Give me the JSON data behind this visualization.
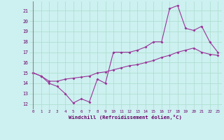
{
  "xlabel": "Windchill (Refroidissement éolien,°C)",
  "bg_color": "#cdf0f0",
  "grid_color": "#aaddcc",
  "line_color": "#993399",
  "hours": [
    0,
    1,
    2,
    3,
    4,
    5,
    6,
    7,
    8,
    9,
    10,
    11,
    12,
    13,
    14,
    15,
    16,
    17,
    18,
    19,
    20,
    21,
    22,
    23
  ],
  "line1": [
    15.0,
    14.7,
    14.0,
    13.7,
    13.0,
    12.1,
    12.5,
    12.2,
    14.4,
    14.0,
    17.0,
    17.0,
    17.0,
    17.2,
    17.5,
    18.0,
    18.0,
    21.2,
    21.5,
    19.3,
    19.1,
    19.5,
    18.0,
    17.0
  ],
  "line2": [
    15.0,
    14.7,
    14.2,
    14.2,
    14.4,
    14.5,
    14.6,
    14.7,
    15.0,
    15.1,
    15.3,
    15.5,
    15.7,
    15.8,
    16.0,
    16.2,
    16.5,
    16.7,
    17.0,
    17.2,
    17.4,
    17.0,
    16.8,
    16.7
  ],
  "ylim": [
    11.5,
    21.9
  ],
  "yticks": [
    12,
    13,
    14,
    15,
    16,
    17,
    18,
    19,
    20,
    21
  ],
  "xlim": [
    -0.5,
    23.5
  ],
  "xticks": [
    0,
    1,
    2,
    3,
    4,
    5,
    6,
    7,
    8,
    9,
    10,
    11,
    12,
    13,
    14,
    15,
    16,
    17,
    18,
    19,
    20,
    21,
    22,
    23
  ]
}
